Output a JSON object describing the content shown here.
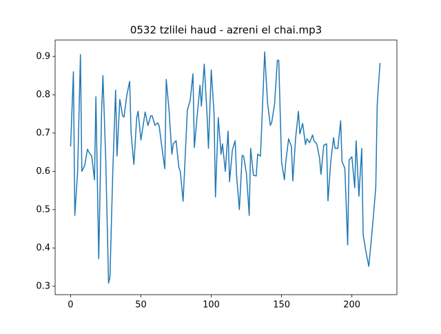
{
  "chart_data": {
    "type": "line",
    "title": "0532 tzlilei haud - azreni el chai.mp3",
    "x": [
      0,
      2,
      3,
      5,
      7,
      8,
      10,
      12,
      13,
      15,
      17,
      18,
      20,
      22,
      23,
      25,
      27,
      28,
      30,
      32,
      33,
      35,
      37,
      38,
      40,
      42,
      43,
      45,
      47,
      48,
      50,
      52,
      53,
      55,
      57,
      58,
      60,
      62,
      63,
      65,
      67,
      68,
      70,
      72,
      73,
      75,
      77,
      78,
      80,
      82,
      83,
      85,
      87,
      88,
      90,
      92,
      93,
      95,
      97,
      98,
      100,
      102,
      103,
      105,
      107,
      108,
      110,
      112,
      113,
      115,
      117,
      118,
      120,
      122,
      123,
      125,
      127,
      128,
      130,
      132,
      133,
      135,
      137,
      138,
      140,
      142,
      143,
      145,
      147,
      148,
      150,
      152,
      153,
      155,
      157,
      158,
      160,
      162,
      163,
      165,
      167,
      168,
      170,
      172,
      173,
      175,
      177,
      178,
      180,
      182,
      183,
      185,
      187,
      188,
      190,
      192,
      193,
      195,
      197,
      198,
      200,
      202,
      203,
      205,
      207,
      208,
      210,
      212,
      213,
      215,
      217,
      218,
      220
    ],
    "series": [
      {
        "color": "#1f77b4",
        "values": [
          0.665,
          0.86,
          0.485,
          0.6,
          0.905,
          0.6,
          0.615,
          0.658,
          0.65,
          0.64,
          0.578,
          0.795,
          0.372,
          0.75,
          0.85,
          0.63,
          0.308,
          0.325,
          0.6,
          0.812,
          0.64,
          0.788,
          0.745,
          0.742,
          0.8,
          0.835,
          0.7,
          0.618,
          0.74,
          0.757,
          0.682,
          0.73,
          0.755,
          0.72,
          0.745,
          0.745,
          0.72,
          0.727,
          0.718,
          0.66,
          0.607,
          0.84,
          0.76,
          0.645,
          0.672,
          0.68,
          0.61,
          0.6,
          0.522,
          0.68,
          0.76,
          0.785,
          0.855,
          0.662,
          0.745,
          0.825,
          0.77,
          0.88,
          0.75,
          0.66,
          0.865,
          0.75,
          0.533,
          0.74,
          0.645,
          0.672,
          0.6,
          0.705,
          0.573,
          0.655,
          0.68,
          0.59,
          0.5,
          0.642,
          0.64,
          0.595,
          0.485,
          0.66,
          0.59,
          0.588,
          0.645,
          0.64,
          0.82,
          0.912,
          0.78,
          0.72,
          0.728,
          0.775,
          0.89,
          0.89,
          0.625,
          0.578,
          0.625,
          0.685,
          0.665,
          0.575,
          0.688,
          0.757,
          0.698,
          0.725,
          0.67,
          0.685,
          0.675,
          0.695,
          0.68,
          0.672,
          0.635,
          0.592,
          0.668,
          0.672,
          0.523,
          0.627,
          0.688,
          0.66,
          0.66,
          0.732,
          0.625,
          0.608,
          0.408,
          0.63,
          0.638,
          0.557,
          0.68,
          0.535,
          0.66,
          0.435,
          0.39,
          0.352,
          0.39,
          0.47,
          0.56,
          0.775,
          0.883
        ]
      }
    ],
    "xlim": [
      -11,
      232
    ],
    "ylim": [
      0.278,
      0.943
    ],
    "xticks": [
      0,
      50,
      100,
      150,
      200
    ],
    "yticks": [
      0.3,
      0.4,
      0.5,
      0.6,
      0.7,
      0.8,
      0.9
    ]
  }
}
